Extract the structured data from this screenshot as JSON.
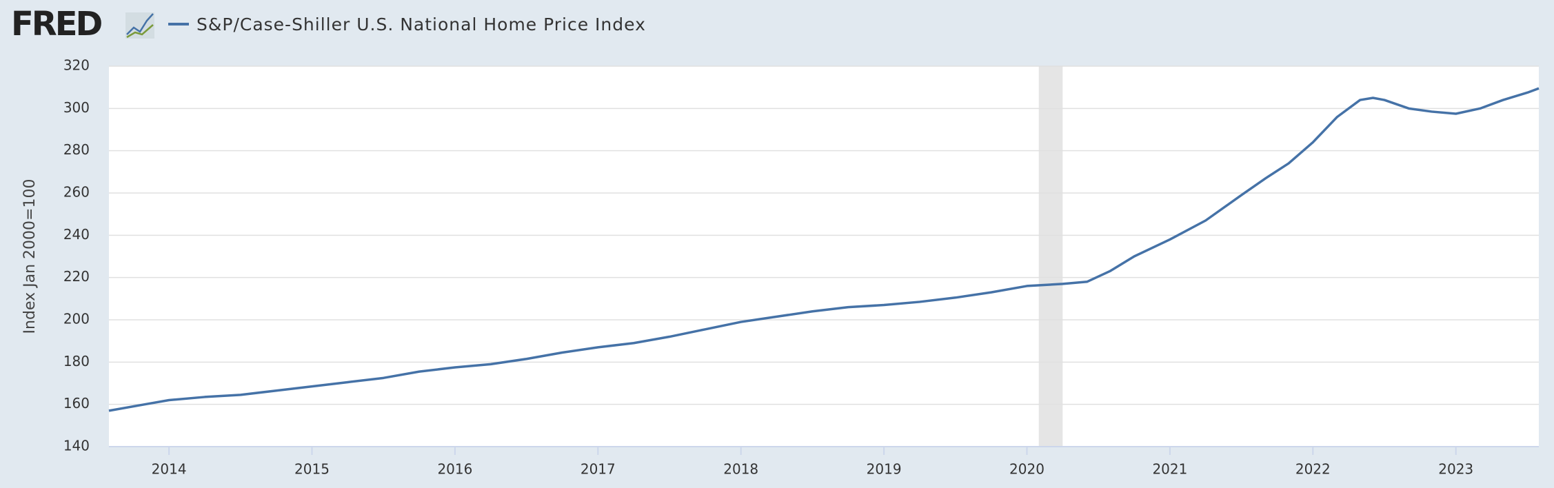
{
  "logo": "FRED",
  "chart_data": {
    "type": "line",
    "series": [
      {
        "name": "S&P/Case-Shiller U.S. National Home Price Index",
        "color": "#4572a7",
        "x": [
          2013.58,
          2013.83,
          2014.0,
          2014.25,
          2014.5,
          2014.75,
          2015.0,
          2015.25,
          2015.5,
          2015.75,
          2016.0,
          2016.25,
          2016.5,
          2016.75,
          2017.0,
          2017.25,
          2017.5,
          2017.75,
          2018.0,
          2018.25,
          2018.5,
          2018.75,
          2019.0,
          2019.25,
          2019.5,
          2019.75,
          2020.0,
          2020.25,
          2020.42,
          2020.58,
          2020.75,
          2021.0,
          2021.25,
          2021.5,
          2021.67,
          2021.83,
          2022.0,
          2022.17,
          2022.33,
          2022.42,
          2022.5,
          2022.67,
          2022.83,
          2023.0,
          2023.17,
          2023.33,
          2023.5,
          2023.58
        ],
        "values": [
          157,
          160,
          162,
          163.5,
          164.5,
          166.5,
          168.5,
          170.5,
          172.5,
          175.5,
          177.5,
          179,
          181.5,
          184.5,
          187,
          189,
          192,
          195.5,
          199,
          201.5,
          204,
          206,
          207,
          208.5,
          210.5,
          213,
          216,
          217,
          218,
          223,
          230,
          238,
          247,
          259,
          267,
          274,
          284,
          296,
          304,
          305,
          304,
          300,
          298.5,
          297.5,
          300,
          304,
          307.5,
          309.5
        ]
      }
    ],
    "y_label": "Index Jan 2000=100",
    "xlim": [
      2013.58,
      2023.58
    ],
    "xticks": [
      2014,
      2015,
      2016,
      2017,
      2018,
      2019,
      2020,
      2021,
      2022,
      2023
    ],
    "ylim": [
      140,
      320
    ],
    "yticks": [
      140,
      160,
      180,
      200,
      220,
      240,
      260,
      280,
      300,
      320
    ],
    "recession": [
      2020.083,
      2020.25
    ],
    "grid": true
  }
}
